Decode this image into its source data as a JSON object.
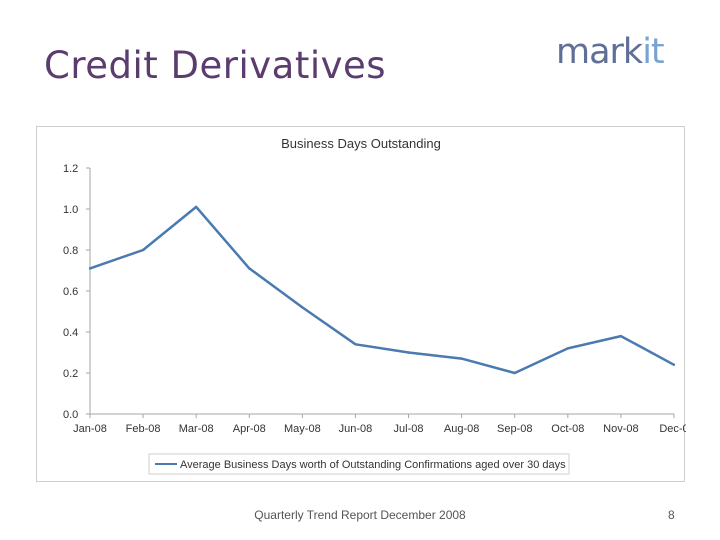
{
  "slide": {
    "title": "Credit Derivatives",
    "logo_part1": "mark",
    "logo_part2": "it",
    "footer": "Quarterly Trend Report December 2008",
    "page_number": "8"
  },
  "colors": {
    "title": "#5b3c6e",
    "line": "#4a7ab0",
    "axis": "#a6a6a6"
  },
  "chart_data": {
    "type": "line",
    "title": "Business Days Outstanding",
    "xlabel": "",
    "ylabel": "",
    "categories": [
      "Jan-08",
      "Feb-08",
      "Mar-08",
      "Apr-08",
      "May-08",
      "Jun-08",
      "Jul-08",
      "Aug-08",
      "Sep-08",
      "Oct-08",
      "Nov-08",
      "Dec-0"
    ],
    "y_tick_labels": [
      "0.0",
      "0.2",
      "0.4",
      "0.6",
      "0.8",
      "1.0",
      "1.2"
    ],
    "ylim": [
      0,
      1.2
    ],
    "grid": false,
    "legend_position": "bottom",
    "series": [
      {
        "name": "Average Business Days worth of Outstanding Confirmations aged over 30 days",
        "values": [
          0.71,
          0.8,
          1.01,
          0.71,
          0.52,
          0.34,
          0.3,
          0.27,
          0.2,
          0.32,
          0.38,
          0.24
        ]
      }
    ]
  }
}
